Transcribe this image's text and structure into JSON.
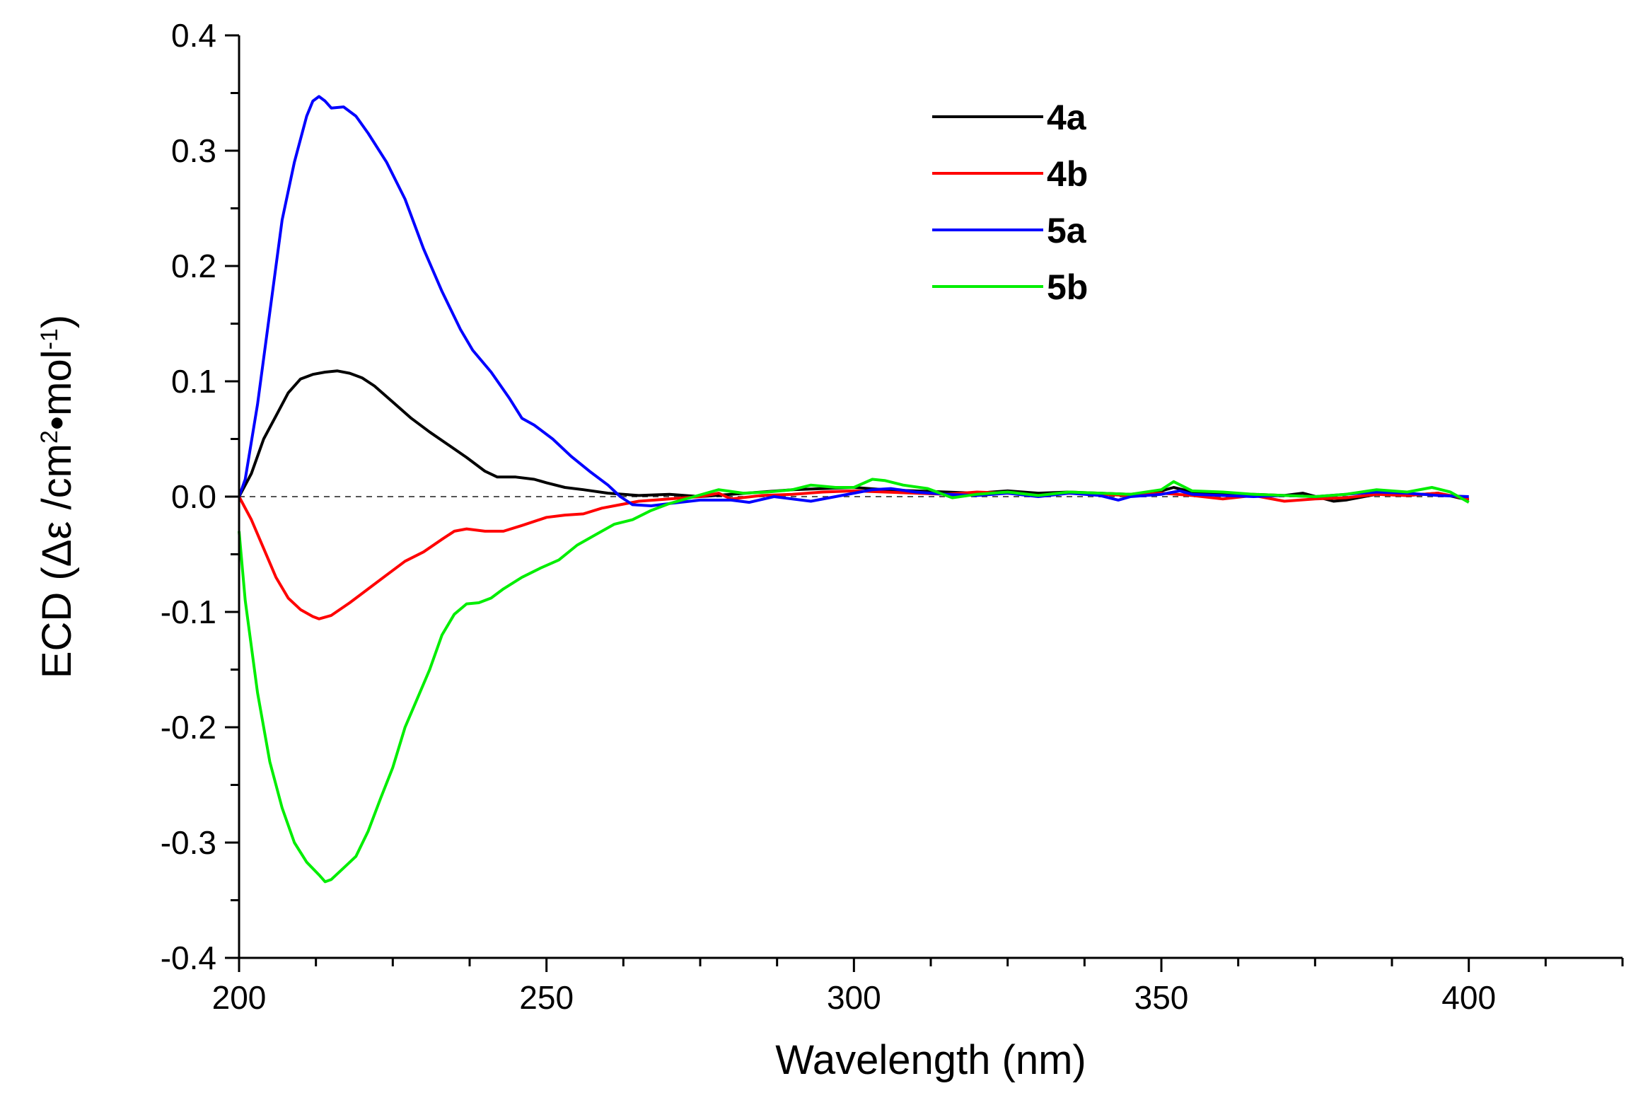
{
  "chart_data": {
    "type": "line",
    "xlabel": "Wavelength (nm)",
    "ylabel_parts": {
      "main": "ECD (Δε /cm",
      "sup1": "2",
      "mid": "•mol",
      "sup2": "-1",
      "end": ")"
    },
    "xlim": [
      200,
      425
    ],
    "ylim": [
      -0.4,
      0.4
    ],
    "xticks": [
      200,
      250,
      300,
      350,
      400
    ],
    "xtick_labels": [
      "200",
      "250",
      "300",
      "350",
      "400"
    ],
    "yticks": [
      -0.4,
      -0.3,
      -0.2,
      -0.1,
      0.0,
      0.1,
      0.2,
      0.3,
      0.4
    ],
    "ytick_labels": [
      "-0.4",
      "-0.3",
      "-0.2",
      "-0.1",
      "0.0",
      "0.1",
      "0.2",
      "0.3",
      "0.4"
    ],
    "zero_line": "dashed",
    "grid": false,
    "legend": "top-center",
    "series": [
      {
        "name": "4a",
        "color": "#000000",
        "points": [
          [
            200,
            0.0
          ],
          [
            202,
            0.02
          ],
          [
            204,
            0.05
          ],
          [
            206,
            0.07
          ],
          [
            208,
            0.09
          ],
          [
            210,
            0.102
          ],
          [
            212,
            0.106
          ],
          [
            214,
            0.108
          ],
          [
            216,
            0.109
          ],
          [
            218,
            0.107
          ],
          [
            220,
            0.103
          ],
          [
            222,
            0.096
          ],
          [
            225,
            0.082
          ],
          [
            228,
            0.068
          ],
          [
            231,
            0.056
          ],
          [
            234,
            0.045
          ],
          [
            237,
            0.034
          ],
          [
            240,
            0.022
          ],
          [
            242,
            0.017
          ],
          [
            245,
            0.017
          ],
          [
            248,
            0.015
          ],
          [
            250,
            0.012
          ],
          [
            253,
            0.008
          ],
          [
            256,
            0.006
          ],
          [
            260,
            0.003
          ],
          [
            265,
            0.001
          ],
          [
            270,
            0.002
          ],
          [
            275,
            0.0
          ],
          [
            280,
            0.002
          ],
          [
            285,
            0.004
          ],
          [
            290,
            0.006
          ],
          [
            295,
            0.007
          ],
          [
            300,
            0.008
          ],
          [
            305,
            0.006
          ],
          [
            310,
            0.005
          ],
          [
            315,
            0.004
          ],
          [
            320,
            0.003
          ],
          [
            325,
            0.005
          ],
          [
            330,
            0.003
          ],
          [
            335,
            0.004
          ],
          [
            340,
            0.003
          ],
          [
            345,
            0.002
          ],
          [
            350,
            0.005
          ],
          [
            352,
            0.008
          ],
          [
            355,
            0.004
          ],
          [
            360,
            0.003
          ],
          [
            365,
            0.002
          ],
          [
            370,
            0.001
          ],
          [
            373,
            0.003
          ],
          [
            378,
            -0.004
          ],
          [
            380,
            -0.003
          ],
          [
            385,
            0.002
          ],
          [
            390,
            0.001
          ],
          [
            395,
            0.003
          ],
          [
            400,
            -0.003
          ]
        ]
      },
      {
        "name": "4b",
        "color": "#ff0000",
        "points": [
          [
            200,
            0.0
          ],
          [
            202,
            -0.02
          ],
          [
            204,
            -0.045
          ],
          [
            206,
            -0.07
          ],
          [
            208,
            -0.088
          ],
          [
            210,
            -0.098
          ],
          [
            212,
            -0.104
          ],
          [
            213,
            -0.106
          ],
          [
            215,
            -0.103
          ],
          [
            218,
            -0.092
          ],
          [
            221,
            -0.08
          ],
          [
            224,
            -0.068
          ],
          [
            227,
            -0.056
          ],
          [
            230,
            -0.048
          ],
          [
            233,
            -0.037
          ],
          [
            235,
            -0.03
          ],
          [
            237,
            -0.028
          ],
          [
            240,
            -0.03
          ],
          [
            243,
            -0.03
          ],
          [
            246,
            -0.025
          ],
          [
            250,
            -0.018
          ],
          [
            253,
            -0.016
          ],
          [
            256,
            -0.015
          ],
          [
            259,
            -0.01
          ],
          [
            262,
            -0.007
          ],
          [
            265,
            -0.004
          ],
          [
            270,
            -0.002
          ],
          [
            275,
            0.0
          ],
          [
            278,
            0.003
          ],
          [
            280,
            -0.002
          ],
          [
            285,
            0.001
          ],
          [
            290,
            0.002
          ],
          [
            295,
            0.004
          ],
          [
            300,
            0.005
          ],
          [
            305,
            0.004
          ],
          [
            310,
            0.003
          ],
          [
            315,
            0.002
          ],
          [
            320,
            0.004
          ],
          [
            325,
            0.003
          ],
          [
            330,
            0.001
          ],
          [
            335,
            0.003
          ],
          [
            340,
            0.002
          ],
          [
            345,
            0.001
          ],
          [
            350,
            0.003
          ],
          [
            355,
            0.001
          ],
          [
            360,
            -0.002
          ],
          [
            365,
            0.001
          ],
          [
            370,
            -0.004
          ],
          [
            375,
            -0.002
          ],
          [
            380,
            -0.001
          ],
          [
            385,
            0.002
          ],
          [
            390,
            0.001
          ],
          [
            395,
            0.003
          ],
          [
            400,
            -0.002
          ]
        ]
      },
      {
        "name": "5a",
        "color": "#0000ff",
        "points": [
          [
            200,
            0.0
          ],
          [
            201,
            0.015
          ],
          [
            203,
            0.08
          ],
          [
            205,
            0.16
          ],
          [
            207,
            0.24
          ],
          [
            209,
            0.29
          ],
          [
            211,
            0.33
          ],
          [
            212,
            0.343
          ],
          [
            213,
            0.347
          ],
          [
            214,
            0.343
          ],
          [
            215,
            0.337
          ],
          [
            217,
            0.338
          ],
          [
            219,
            0.33
          ],
          [
            221,
            0.315
          ],
          [
            224,
            0.29
          ],
          [
            227,
            0.258
          ],
          [
            230,
            0.215
          ],
          [
            233,
            0.178
          ],
          [
            236,
            0.145
          ],
          [
            238,
            0.127
          ],
          [
            241,
            0.108
          ],
          [
            244,
            0.085
          ],
          [
            246,
            0.068
          ],
          [
            248,
            0.062
          ],
          [
            251,
            0.05
          ],
          [
            254,
            0.035
          ],
          [
            257,
            0.022
          ],
          [
            260,
            0.01
          ],
          [
            262,
            0.0
          ],
          [
            264,
            -0.007
          ],
          [
            267,
            -0.008
          ],
          [
            270,
            -0.006
          ],
          [
            275,
            -0.003
          ],
          [
            280,
            -0.003
          ],
          [
            283,
            -0.005
          ],
          [
            287,
            0.0
          ],
          [
            290,
            -0.002
          ],
          [
            293,
            -0.004
          ],
          [
            297,
            0.0
          ],
          [
            300,
            0.003
          ],
          [
            303,
            0.006
          ],
          [
            306,
            0.007
          ],
          [
            310,
            0.004
          ],
          [
            315,
            0.002
          ],
          [
            320,
            0.001
          ],
          [
            325,
            0.003
          ],
          [
            330,
            0.0
          ],
          [
            335,
            0.003
          ],
          [
            340,
            0.001
          ],
          [
            343,
            -0.003
          ],
          [
            345,
            0.0
          ],
          [
            350,
            0.002
          ],
          [
            353,
            0.005
          ],
          [
            355,
            0.002
          ],
          [
            360,
            0.001
          ],
          [
            365,
            0.0
          ],
          [
            370,
            0.001
          ],
          [
            375,
            0.0
          ],
          [
            380,
            0.002
          ],
          [
            385,
            0.004
          ],
          [
            390,
            0.003
          ],
          [
            395,
            0.001
          ],
          [
            400,
            0.0
          ]
        ]
      },
      {
        "name": "5b",
        "color": "#00ee00",
        "points": [
          [
            200,
            -0.03
          ],
          [
            201,
            -0.09
          ],
          [
            203,
            -0.17
          ],
          [
            205,
            -0.23
          ],
          [
            207,
            -0.27
          ],
          [
            209,
            -0.3
          ],
          [
            211,
            -0.317
          ],
          [
            213,
            -0.328
          ],
          [
            214,
            -0.334
          ],
          [
            215,
            -0.332
          ],
          [
            217,
            -0.322
          ],
          [
            219,
            -0.312
          ],
          [
            221,
            -0.29
          ],
          [
            223,
            -0.262
          ],
          [
            225,
            -0.235
          ],
          [
            227,
            -0.2
          ],
          [
            229,
            -0.175
          ],
          [
            231,
            -0.15
          ],
          [
            233,
            -0.12
          ],
          [
            235,
            -0.102
          ],
          [
            237,
            -0.093
          ],
          [
            239,
            -0.092
          ],
          [
            241,
            -0.088
          ],
          [
            243,
            -0.08
          ],
          [
            246,
            -0.07
          ],
          [
            249,
            -0.062
          ],
          [
            252,
            -0.055
          ],
          [
            255,
            -0.042
          ],
          [
            258,
            -0.033
          ],
          [
            261,
            -0.024
          ],
          [
            264,
            -0.02
          ],
          [
            267,
            -0.012
          ],
          [
            270,
            -0.006
          ],
          [
            274,
            0.0
          ],
          [
            278,
            0.006
          ],
          [
            282,
            0.003
          ],
          [
            286,
            0.004
          ],
          [
            290,
            0.006
          ],
          [
            293,
            0.01
          ],
          [
            297,
            0.008
          ],
          [
            300,
            0.008
          ],
          [
            303,
            0.015
          ],
          [
            305,
            0.014
          ],
          [
            308,
            0.01
          ],
          [
            312,
            0.007
          ],
          [
            316,
            -0.001
          ],
          [
            320,
            0.002
          ],
          [
            325,
            0.004
          ],
          [
            330,
            0.001
          ],
          [
            335,
            0.004
          ],
          [
            340,
            0.003
          ],
          [
            345,
            0.002
          ],
          [
            350,
            0.006
          ],
          [
            352,
            0.013
          ],
          [
            355,
            0.005
          ],
          [
            360,
            0.004
          ],
          [
            365,
            0.002
          ],
          [
            370,
            0.001
          ],
          [
            375,
            0.0
          ],
          [
            380,
            0.002
          ],
          [
            385,
            0.006
          ],
          [
            390,
            0.004
          ],
          [
            394,
            0.008
          ],
          [
            397,
            0.004
          ],
          [
            400,
            -0.005
          ]
        ]
      }
    ]
  }
}
